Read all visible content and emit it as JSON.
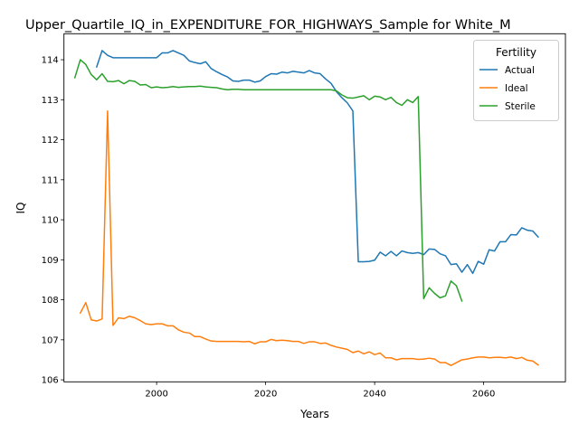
{
  "chart_data": {
    "type": "line",
    "title": "Upper_Quartile_IQ_in_EXPENDITURE_FOR_HIGHWAYS_Sample for White_M",
    "xlabel": "Years",
    "ylabel": "IQ",
    "xlim": [
      1983,
      2075
    ],
    "ylim": [
      105.95,
      114.65
    ],
    "xticks": [
      2000,
      2020,
      2040,
      2060
    ],
    "yticks": [
      106,
      107,
      108,
      109,
      110,
      111,
      112,
      113,
      114
    ],
    "grid": false,
    "legend": {
      "title": "Fertility",
      "placement": "top-right"
    },
    "series": [
      {
        "name": "Actual",
        "color": "#1f77b4",
        "x": [
          1989,
          1990,
          1991,
          1992,
          1993,
          1994,
          1995,
          1996,
          1997,
          1998,
          1999,
          2000,
          2001,
          2002,
          2003,
          2004,
          2005,
          2006,
          2007,
          2008,
          2009,
          2010,
          2011,
          2012,
          2013,
          2014,
          2015,
          2016,
          2017,
          2018,
          2019,
          2020,
          2021,
          2022,
          2023,
          2024,
          2025,
          2026,
          2027,
          2028,
          2029,
          2030,
          2031,
          2032,
          2033,
          2034,
          2035,
          2036,
          2037,
          2038,
          2039,
          2040,
          2041,
          2042,
          2043,
          2044,
          2045,
          2046,
          2047,
          2048,
          2049,
          2050,
          2051,
          2052,
          2053,
          2054,
          2055,
          2056,
          2057,
          2058,
          2059,
          2060,
          2061,
          2062,
          2063,
          2064,
          2065,
          2066,
          2067,
          2068,
          2069,
          2070
        ],
        "y": [
          113.82,
          114.23,
          114.11,
          114.05,
          114.05,
          114.05,
          114.05,
          114.05,
          114.05,
          114.05,
          114.05,
          114.05,
          114.17,
          114.17,
          114.23,
          114.17,
          114.11,
          113.97,
          113.93,
          113.9,
          113.95,
          113.78,
          113.7,
          113.63,
          113.57,
          113.47,
          113.46,
          113.49,
          113.49,
          113.44,
          113.47,
          113.58,
          113.65,
          113.64,
          113.69,
          113.67,
          113.71,
          113.69,
          113.67,
          113.73,
          113.67,
          113.65,
          113.52,
          113.41,
          113.2,
          113.05,
          112.92,
          112.72,
          108.95,
          108.95,
          108.96,
          108.99,
          109.19,
          109.1,
          109.21,
          109.1,
          109.22,
          109.18,
          109.16,
          109.18,
          109.13,
          109.27,
          109.26,
          109.15,
          109.1,
          108.88,
          108.9,
          108.69,
          108.88,
          108.66,
          108.96,
          108.89,
          109.25,
          109.22,
          109.45,
          109.45,
          109.63,
          109.62,
          109.8,
          109.74,
          109.72,
          109.57
        ]
      },
      {
        "name": "Ideal",
        "color": "#ff7f0e",
        "x": [
          1986,
          1987,
          1988,
          1989,
          1990,
          1991,
          1992,
          1993,
          1994,
          1995,
          1996,
          1997,
          1998,
          1999,
          2000,
          2001,
          2002,
          2003,
          2004,
          2005,
          2006,
          2007,
          2008,
          2009,
          2010,
          2011,
          2012,
          2013,
          2014,
          2015,
          2016,
          2017,
          2018,
          2019,
          2020,
          2021,
          2022,
          2023,
          2024,
          2025,
          2026,
          2027,
          2028,
          2029,
          2030,
          2031,
          2032,
          2033,
          2034,
          2035,
          2036,
          2037,
          2038,
          2039,
          2040,
          2041,
          2042,
          2043,
          2044,
          2045,
          2046,
          2047,
          2048,
          2049,
          2050,
          2051,
          2052,
          2053,
          2054,
          2055,
          2056,
          2057,
          2058,
          2059,
          2060,
          2061,
          2062,
          2063,
          2064,
          2065,
          2066,
          2067,
          2068,
          2069,
          2070
        ],
        "y": [
          107.67,
          107.93,
          107.5,
          107.47,
          107.52,
          112.72,
          107.36,
          107.55,
          107.53,
          107.59,
          107.55,
          107.48,
          107.4,
          107.38,
          107.4,
          107.4,
          107.35,
          107.35,
          107.25,
          107.19,
          107.17,
          107.08,
          107.08,
          107.02,
          106.97,
          106.96,
          106.96,
          106.96,
          106.96,
          106.96,
          106.95,
          106.96,
          106.9,
          106.95,
          106.95,
          107.01,
          106.98,
          106.99,
          106.98,
          106.96,
          106.96,
          106.91,
          106.95,
          106.95,
          106.91,
          106.92,
          106.86,
          106.82,
          106.79,
          106.76,
          106.68,
          106.72,
          106.65,
          106.7,
          106.63,
          106.67,
          106.55,
          106.55,
          106.5,
          106.53,
          106.53,
          106.53,
          106.51,
          106.52,
          106.54,
          106.52,
          106.43,
          106.43,
          106.36,
          106.43,
          106.5,
          106.52,
          106.55,
          106.57,
          106.57,
          106.55,
          106.56,
          106.56,
          106.55,
          106.57,
          106.53,
          106.56,
          106.49,
          106.47,
          106.37
        ]
      },
      {
        "name": "Sterile",
        "color": "#2ca02c",
        "x": [
          1985,
          1986,
          1987,
          1988,
          1989,
          1990,
          1991,
          1992,
          1993,
          1994,
          1995,
          1996,
          1997,
          1998,
          1999,
          2000,
          2001,
          2002,
          2003,
          2004,
          2005,
          2006,
          2007,
          2008,
          2009,
          2010,
          2011,
          2012,
          2013,
          2014,
          2015,
          2016,
          2017,
          2018,
          2019,
          2020,
          2021,
          2022,
          2023,
          2024,
          2025,
          2026,
          2027,
          2028,
          2029,
          2030,
          2031,
          2032,
          2033,
          2034,
          2035,
          2036,
          2037,
          2038,
          2039,
          2040,
          2041,
          2042,
          2043,
          2044,
          2045,
          2046,
          2047,
          2048,
          2049,
          2050,
          2051,
          2052,
          2053,
          2054,
          2055,
          2056
        ],
        "y": [
          113.55,
          114.0,
          113.88,
          113.63,
          113.5,
          113.65,
          113.46,
          113.45,
          113.48,
          113.4,
          113.48,
          113.46,
          113.37,
          113.38,
          113.3,
          113.32,
          113.3,
          113.31,
          113.33,
          113.31,
          113.32,
          113.33,
          113.33,
          113.34,
          113.32,
          113.31,
          113.3,
          113.27,
          113.25,
          113.26,
          113.26,
          113.25,
          113.25,
          113.25,
          113.25,
          113.25,
          113.25,
          113.25,
          113.25,
          113.25,
          113.25,
          113.25,
          113.25,
          113.25,
          113.25,
          113.25,
          113.25,
          113.25,
          113.22,
          113.12,
          113.05,
          113.04,
          113.07,
          113.1,
          113.0,
          113.09,
          113.07,
          113.0,
          113.06,
          112.93,
          112.86,
          113.0,
          112.93,
          113.08,
          108.03,
          108.3,
          108.16,
          108.05,
          108.1,
          108.47,
          108.35,
          107.97
        ]
      }
    ]
  }
}
